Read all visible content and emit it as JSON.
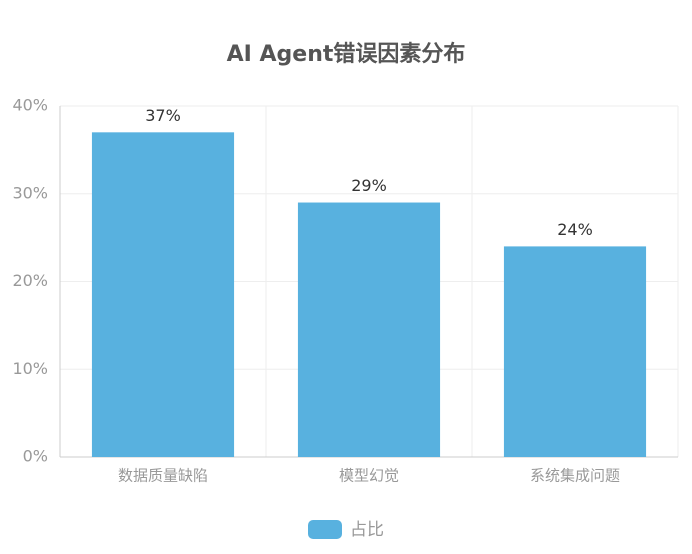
{
  "chart_data": {
    "type": "bar",
    "title": "AI Agent错误因素分布",
    "categories": [
      "数据质量缺陷",
      "模型幻觉",
      "系统集成问题"
    ],
    "series": [
      {
        "name": "占比",
        "color": "#58b1df",
        "values": [
          37,
          29,
          24
        ],
        "value_labels": [
          "37%",
          "29%",
          "24%"
        ]
      }
    ],
    "ylim": [
      0,
      40
    ],
    "yticks": [
      {
        "value": 0,
        "label": "0%"
      },
      {
        "value": 10,
        "label": "10%"
      },
      {
        "value": 20,
        "label": "20%"
      },
      {
        "value": 30,
        "label": "30%"
      },
      {
        "value": 40,
        "label": "40%"
      }
    ],
    "grid": true,
    "legend": "bottom"
  }
}
